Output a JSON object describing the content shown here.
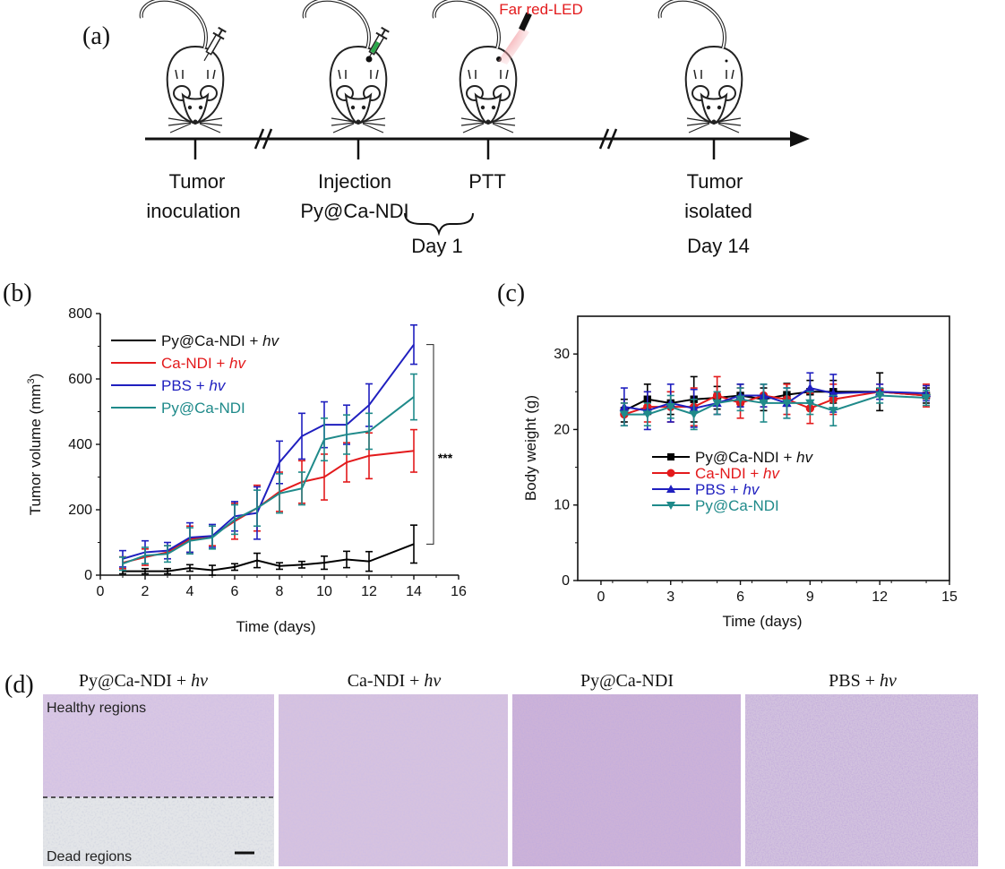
{
  "panel_a": {
    "label": "(a)",
    "led_label": "Far red-LED",
    "events": [
      {
        "line1": "Tumor",
        "line2": "inoculation",
        "day": ""
      },
      {
        "line1": "Injection",
        "line2": "Py@Ca-NDI",
        "day": ""
      },
      {
        "line1": "PTT",
        "line2": "",
        "day": ""
      },
      {
        "line1": "Tumor",
        "line2": "isolated",
        "day": "Day 14"
      }
    ],
    "brace_day": "Day 1"
  },
  "chart_data": [
    {
      "type": "line",
      "panel": "(b)",
      "xlabel": "Time (days)",
      "ylabel": "Tumor volume (mm",
      "ylabel_sup": "3",
      "ylabel_end": ")",
      "xlim": [
        0,
        16
      ],
      "ylim": [
        0,
        800
      ],
      "xticks": [
        0,
        2,
        4,
        6,
        8,
        10,
        12,
        14,
        16
      ],
      "yticks": [
        0,
        200,
        400,
        600,
        800
      ],
      "significance": "***",
      "x": [
        1,
        2,
        3,
        4,
        5,
        6,
        7,
        8,
        9,
        10,
        11,
        12,
        14
      ],
      "series": [
        {
          "name": "Py@Ca-NDI + ",
          "name_em": "hv",
          "color": "#000000",
          "values": [
            12,
            12,
            12,
            22,
            15,
            25,
            45,
            28,
            32,
            38,
            48,
            42,
            95
          ],
          "errors": [
            8,
            8,
            8,
            10,
            15,
            10,
            22,
            10,
            10,
            20,
            25,
            30,
            58
          ]
        },
        {
          "name": "Ca-NDI + ",
          "name_em": "hv",
          "color": "#e31a1c",
          "values": [
            38,
            55,
            70,
            110,
            120,
            165,
            205,
            255,
            285,
            300,
            345,
            365,
            380
          ],
          "errors": [
            18,
            25,
            20,
            40,
            30,
            55,
            70,
            60,
            65,
            70,
            60,
            70,
            65
          ]
        },
        {
          "name": "PBS + ",
          "name_em": "hv",
          "color": "#1f1fbf",
          "values": [
            50,
            70,
            75,
            115,
            120,
            180,
            190,
            345,
            425,
            460,
            460,
            520,
            705
          ],
          "errors": [
            25,
            35,
            25,
            45,
            35,
            45,
            80,
            65,
            70,
            70,
            60,
            65,
            60
          ]
        },
        {
          "name": "Py@Ca-NDI",
          "name_em": "",
          "color": "#1f8a8a",
          "values": [
            35,
            60,
            65,
            105,
            115,
            170,
            205,
            250,
            265,
            415,
            430,
            440,
            545
          ],
          "errors": [
            20,
            25,
            25,
            40,
            35,
            45,
            55,
            60,
            50,
            65,
            60,
            55,
            70
          ]
        }
      ]
    },
    {
      "type": "line",
      "panel": "(c)",
      "xlabel": "Time (days)",
      "ylabel": "Body weight (g)",
      "xlim": [
        -1,
        15
      ],
      "ylim": [
        0,
        35
      ],
      "xticks": [
        0,
        3,
        6,
        9,
        12,
        15
      ],
      "yticks": [
        0,
        10,
        20,
        30
      ],
      "x": [
        1,
        2,
        3,
        4,
        5,
        6,
        7,
        8,
        9,
        10,
        12,
        14
      ],
      "series": [
        {
          "name": "Py@Ca-NDI + ",
          "name_em": "hv",
          "color": "#000000",
          "marker": "square",
          "values": [
            22.5,
            24.0,
            23.5,
            24.0,
            24.2,
            24.5,
            24.0,
            24.6,
            25.0,
            25.0,
            25.0,
            24.5
          ],
          "errors": [
            1.5,
            2.0,
            1.5,
            3.0,
            1.5,
            1.5,
            1.5,
            1.5,
            1.5,
            1.5,
            2.5,
            1.0
          ]
        },
        {
          "name": "Ca-NDI + ",
          "name_em": "hv",
          "color": "#e31a1c",
          "marker": "circle",
          "values": [
            22.0,
            23.0,
            23.0,
            23.0,
            24.5,
            23.5,
            24.5,
            24.0,
            22.8,
            24.0,
            25.0,
            24.5
          ],
          "errors": [
            1.5,
            2.0,
            2.0,
            2.5,
            2.5,
            2.0,
            1.5,
            2.0,
            2.0,
            2.0,
            1.0,
            1.5
          ]
        },
        {
          "name": "PBS + ",
          "name_em": "hv",
          "color": "#1f1fbf",
          "marker": "triangle-up",
          "values": [
            23.0,
            22.5,
            23.5,
            22.8,
            23.5,
            24.5,
            24.5,
            23.5,
            25.5,
            24.8,
            25.0,
            24.8
          ],
          "errors": [
            2.5,
            2.5,
            2.5,
            2.5,
            1.5,
            1.5,
            1.5,
            2.0,
            2.0,
            2.5,
            1.0,
            1.0
          ]
        },
        {
          "name": "Py@Ca-NDI",
          "name_em": "",
          "color": "#1f8a8a",
          "marker": "triangle-down",
          "values": [
            22.0,
            22.0,
            23.0,
            22.0,
            23.5,
            24.0,
            23.5,
            23.5,
            23.5,
            22.5,
            24.5,
            24.2
          ],
          "errors": [
            1.5,
            1.5,
            1.5,
            2.0,
            1.5,
            1.5,
            2.5,
            2.0,
            1.5,
            2.0,
            1.0,
            1.0
          ]
        }
      ]
    }
  ],
  "panel_d": {
    "label": "(d)",
    "images": [
      {
        "title": "Py@Ca-NDI + ",
        "title_em": "hv",
        "note_top": "Healthy regions",
        "note_bottom": "Dead regions"
      },
      {
        "title": "Ca-NDI + ",
        "title_em": "hv"
      },
      {
        "title": "Py@Ca-NDI",
        "title_em": ""
      },
      {
        "title": "PBS + ",
        "title_em": "hv"
      }
    ]
  }
}
